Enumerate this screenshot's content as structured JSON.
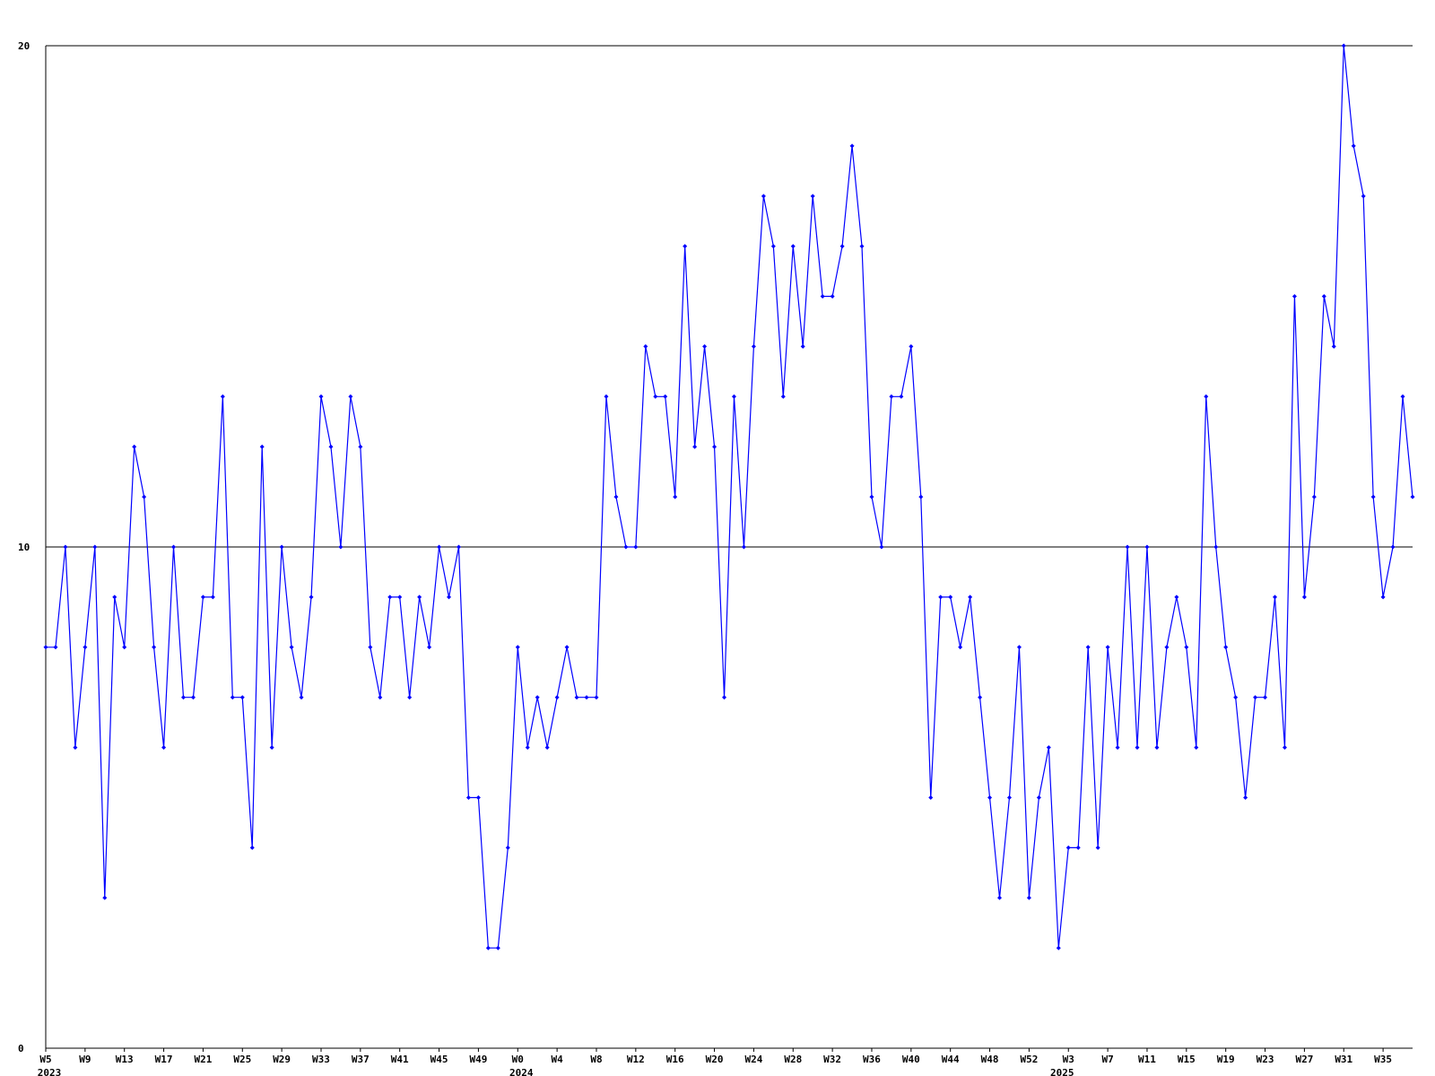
{
  "chart_data": {
    "type": "line",
    "categories": [
      "W5",
      null,
      null,
      null,
      "W9",
      null,
      null,
      null,
      "W13",
      null,
      null,
      null,
      "W17",
      null,
      null,
      null,
      "W21",
      null,
      null,
      null,
      "W25",
      null,
      null,
      null,
      "W29",
      null,
      null,
      null,
      "W33",
      null,
      null,
      null,
      "W37",
      null,
      null,
      null,
      "W41",
      null,
      null,
      null,
      "W45",
      null,
      null,
      null,
      "W49",
      null,
      null,
      null,
      "W0",
      null,
      null,
      null,
      "W4",
      null,
      null,
      null,
      "W8",
      null,
      null,
      null,
      "W12",
      null,
      null,
      null,
      "W16",
      null,
      null,
      null,
      "W20",
      null,
      null,
      null,
      "W24",
      null,
      null,
      null,
      "W28",
      null,
      null,
      null,
      "W32",
      null,
      null,
      null,
      "W36",
      null,
      null,
      null,
      "W40",
      null,
      null,
      null,
      "W44",
      null,
      null,
      null,
      "W48",
      null,
      null,
      null,
      "W52",
      null,
      null,
      null,
      "W3",
      null,
      null,
      null,
      "W7",
      null,
      null,
      null,
      "W11",
      null,
      null,
      null,
      "W15",
      null,
      null,
      null,
      "W19",
      null,
      null,
      null,
      "W23",
      null,
      null,
      null,
      "W27",
      null,
      null,
      null,
      "W31",
      null,
      null,
      null,
      "W35",
      null,
      null,
      null
    ],
    "year_labels": [
      "2023",
      null,
      null,
      null,
      null,
      null,
      null,
      null,
      null,
      null,
      null,
      null,
      null,
      null,
      null,
      null,
      null,
      null,
      null,
      null,
      null,
      null,
      null,
      null,
      null,
      null,
      null,
      null,
      null,
      null,
      null,
      null,
      null,
      null,
      null,
      null,
      null,
      null,
      null,
      null,
      null,
      null,
      null,
      null,
      null,
      null,
      null,
      null,
      "2024",
      null,
      null,
      null,
      null,
      null,
      null,
      null,
      null,
      null,
      null,
      null,
      null,
      null,
      null,
      null,
      null,
      null,
      null,
      null,
      null,
      null,
      null,
      null,
      null,
      null,
      null,
      null,
      null,
      null,
      null,
      null,
      null,
      null,
      null,
      null,
      null,
      null,
      null,
      null,
      null,
      null,
      null,
      null,
      null,
      null,
      null,
      null,
      null,
      null,
      null,
      null,
      null,
      null,
      null,
      "2025",
      null,
      null,
      null,
      null,
      null,
      null,
      null,
      null,
      null,
      null,
      null,
      null,
      null,
      null,
      null,
      null,
      null,
      null,
      null,
      null,
      null,
      null,
      null,
      null,
      null,
      null,
      null,
      null,
      null,
      null,
      null,
      null,
      null,
      null,
      null,
      null,
      null,
      null
    ],
    "series": [
      {
        "color": "#0000ff",
        "values": [
          8,
          8,
          10,
          6,
          8,
          10,
          3,
          9,
          8,
          12,
          11,
          8,
          6,
          10,
          7,
          7,
          9,
          9,
          13,
          7,
          7,
          4,
          12,
          6,
          10,
          8,
          7,
          9,
          13,
          12,
          10,
          13,
          12,
          8,
          7,
          9,
          9,
          7,
          9,
          8,
          10,
          9,
          10,
          5,
          5,
          2,
          2,
          4,
          8,
          6,
          7,
          6,
          7,
          8,
          7,
          7,
          7,
          13,
          11,
          10,
          10,
          14,
          13,
          13,
          11,
          16,
          12,
          14,
          12,
          7,
          13,
          10,
          14,
          17,
          16,
          13,
          16,
          14,
          17,
          15,
          15,
          16,
          18,
          16,
          11,
          10,
          13,
          13,
          14,
          11,
          5,
          9,
          9,
          8,
          9,
          7,
          5,
          3,
          5,
          8,
          3,
          5,
          6,
          2,
          4,
          4,
          8,
          4,
          8,
          6,
          10,
          6,
          10,
          6,
          8,
          9,
          8,
          6,
          13,
          10,
          8,
          7,
          5,
          7,
          7,
          9,
          6,
          15,
          9,
          11,
          15,
          14,
          20,
          18,
          17,
          11,
          9,
          10,
          13,
          11
        ]
      }
    ],
    "ylim": [
      0,
      20
    ],
    "yticks": [
      0,
      10,
      20
    ],
    "grid": true
  }
}
